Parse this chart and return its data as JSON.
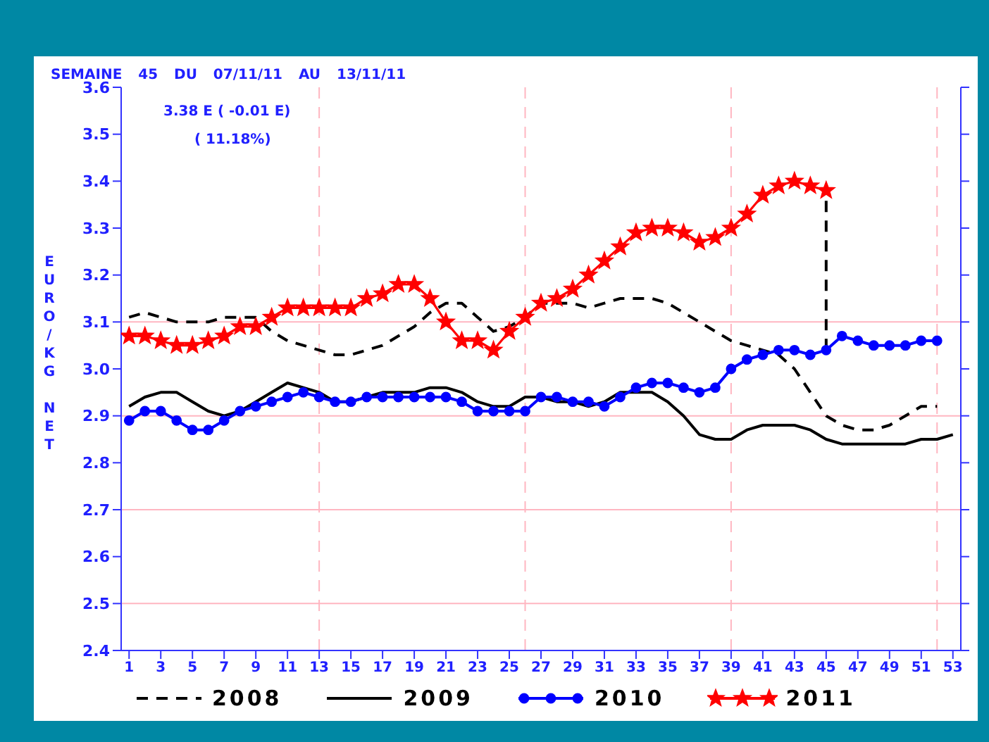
{
  "chart_data": {
    "type": "line",
    "subtitle": "SEMAINE 45 DU 07/11/11 AU 13/11/11",
    "ylabel": "EURO/KG NET",
    "annotations": [
      "3.38 E ( -0.01 E)",
      "( 11.18%)"
    ],
    "x": [
      1,
      2,
      3,
      4,
      5,
      6,
      7,
      8,
      9,
      10,
      11,
      12,
      13,
      14,
      15,
      16,
      17,
      18,
      19,
      20,
      21,
      22,
      23,
      24,
      25,
      26,
      27,
      28,
      29,
      30,
      31,
      32,
      33,
      34,
      35,
      36,
      37,
      38,
      39,
      40,
      41,
      42,
      43,
      44,
      45,
      46,
      47,
      48,
      49,
      50,
      51,
      52,
      53
    ],
    "series": [
      {
        "name": "2008",
        "color": "#000000",
        "line_style": "dashed",
        "marker": "none",
        "values": [
          3.11,
          3.12,
          3.11,
          3.1,
          3.1,
          3.1,
          3.11,
          3.11,
          3.11,
          3.08,
          3.06,
          3.05,
          3.04,
          3.03,
          3.03,
          3.04,
          3.05,
          3.07,
          3.09,
          3.12,
          3.14,
          3.14,
          3.11,
          3.08,
          3.09,
          3.11,
          3.14,
          3.14,
          3.14,
          3.13,
          3.14,
          3.15,
          3.15,
          3.15,
          3.14,
          3.12,
          3.1,
          3.08,
          3.06,
          3.05,
          3.04,
          3.03,
          3.0,
          2.95,
          2.9,
          2.88,
          2.87,
          2.87,
          2.88,
          2.9,
          2.92,
          2.92,
          null
        ]
      },
      {
        "name": "2009",
        "color": "#000000",
        "line_style": "solid",
        "marker": "none",
        "values": [
          2.92,
          2.94,
          2.95,
          2.95,
          2.93,
          2.91,
          2.9,
          2.91,
          2.93,
          2.95,
          2.97,
          2.96,
          2.95,
          2.93,
          2.93,
          2.94,
          2.95,
          2.95,
          2.95,
          2.96,
          2.96,
          2.95,
          2.93,
          2.92,
          2.92,
          2.94,
          2.94,
          2.93,
          2.93,
          2.92,
          2.93,
          2.95,
          2.95,
          2.95,
          2.93,
          2.9,
          2.86,
          2.85,
          2.85,
          2.87,
          2.88,
          2.88,
          2.88,
          2.87,
          2.85,
          2.84,
          2.84,
          2.84,
          2.84,
          2.84,
          2.85,
          2.85,
          2.86
        ]
      },
      {
        "name": "2010",
        "color": "#0000ff",
        "line_style": "solid",
        "marker": "circle",
        "values": [
          2.89,
          2.91,
          2.91,
          2.89,
          2.87,
          2.87,
          2.89,
          2.91,
          2.92,
          2.93,
          2.94,
          2.95,
          2.94,
          2.93,
          2.93,
          2.94,
          2.94,
          2.94,
          2.94,
          2.94,
          2.94,
          2.93,
          2.91,
          2.91,
          2.91,
          2.91,
          2.94,
          2.94,
          2.93,
          2.93,
          2.92,
          2.94,
          2.96,
          2.97,
          2.97,
          2.96,
          2.95,
          2.96,
          3.0,
          3.02,
          3.03,
          3.04,
          3.04,
          3.03,
          3.04,
          3.07,
          3.06,
          3.05,
          3.05,
          3.05,
          3.06,
          3.06,
          null
        ]
      },
      {
        "name": "2011",
        "color": "#ff0000",
        "line_style": "solid",
        "marker": "star",
        "values": [
          3.07,
          3.07,
          3.06,
          3.05,
          3.05,
          3.06,
          3.07,
          3.09,
          3.09,
          3.11,
          3.13,
          3.13,
          3.13,
          3.13,
          3.13,
          3.15,
          3.16,
          3.18,
          3.18,
          3.15,
          3.1,
          3.06,
          3.06,
          3.04,
          3.08,
          3.11,
          3.14,
          3.15,
          3.17,
          3.2,
          3.23,
          3.26,
          3.29,
          3.3,
          3.3,
          3.29,
          3.27,
          3.28,
          3.3,
          3.33,
          3.37,
          3.39,
          3.4,
          3.39,
          3.38,
          null,
          null,
          null,
          null,
          null,
          null,
          null,
          null
        ]
      },
      {
        "color": "#000000",
        "line_style": "dashed",
        "marker": "none",
        "x": [
          45,
          45
        ],
        "values": [
          3.04,
          3.38
        ]
      }
    ],
    "ylim": [
      2.4,
      3.6
    ],
    "yticks": [
      2.4,
      2.5,
      2.6,
      2.7,
      2.8,
      2.9,
      {
        "value": 3,
        "label": "3.0"
      },
      3.1,
      3.2,
      3.3,
      3.4,
      3.5,
      3.6
    ],
    "xlim": [
      0.5,
      53.5
    ],
    "xticks": [
      1,
      3,
      5,
      7,
      9,
      11,
      13,
      15,
      17,
      19,
      21,
      23,
      25,
      27,
      29,
      31,
      33,
      35,
      37,
      39,
      41,
      43,
      45,
      47,
      49,
      51,
      53
    ],
    "ref_lines": [
      {
        "axis": "y",
        "value": 2.5,
        "color": "#ffb6c1",
        "line_style": "solid"
      },
      {
        "axis": "y",
        "value": 2.7,
        "color": "#ffb6c1",
        "line_style": "solid"
      },
      {
        "axis": "y",
        "value": 2.9,
        "color": "#ffb6c1",
        "line_style": "solid"
      },
      {
        "axis": "y",
        "value": 3.1,
        "color": "#ffb6c1",
        "line_style": "solid"
      },
      {
        "axis": "x",
        "value": 13,
        "color": "#ffb6c1",
        "line_style": "dashed"
      },
      {
        "axis": "x",
        "value": 26,
        "color": "#ffb6c1",
        "line_style": "dashed"
      },
      {
        "axis": "x",
        "value": 39,
        "color": "#ffb6c1",
        "line_style": "dashed"
      },
      {
        "axis": "x",
        "value": 52,
        "color": "#ffb6c1",
        "line_style": "dashed"
      }
    ],
    "legend": "bottom"
  }
}
